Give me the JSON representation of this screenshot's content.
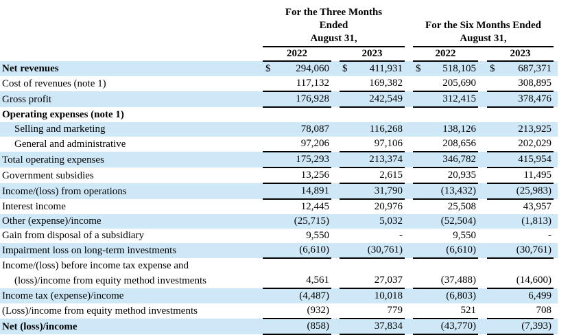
{
  "document": {
    "kind": "income-statement-table",
    "currency_symbol": "$"
  },
  "colors": {
    "row_highlight": "#cfe8f7",
    "rule": "#000000",
    "background": "#ffffff",
    "text": "#000000"
  },
  "header": {
    "groups": [
      {
        "title_lines": [
          "For the Three Months",
          "Ended",
          "August 31,"
        ],
        "years": [
          "2022",
          "2023"
        ]
      },
      {
        "title_lines": [
          "For the Six Months Ended",
          "August 31,"
        ],
        "years": [
          "2022",
          "2023"
        ]
      }
    ]
  },
  "rows": [
    {
      "label": "Net revenues",
      "bold": true,
      "indent": false,
      "shaded": true,
      "dollar": true,
      "underline": false,
      "values": [
        "294,060",
        "411,931",
        "518,105",
        "687,371"
      ]
    },
    {
      "label": "Cost of revenues (note 1)",
      "bold": false,
      "indent": false,
      "shaded": false,
      "dollar": false,
      "underline": true,
      "values": [
        "117,132",
        "169,382",
        "205,690",
        "308,895"
      ]
    },
    {
      "label": "Gross profit",
      "bold": false,
      "indent": false,
      "shaded": true,
      "dollar": false,
      "underline": true,
      "values": [
        "176,928",
        "242,549",
        "312,415",
        "378,476"
      ]
    },
    {
      "label": "Operating expenses (note 1)",
      "bold": true,
      "indent": false,
      "shaded": false,
      "dollar": false,
      "underline": false,
      "values": null
    },
    {
      "label": "Selling and marketing",
      "bold": false,
      "indent": true,
      "shaded": true,
      "dollar": false,
      "underline": false,
      "values": [
        "78,087",
        "116,268",
        "138,126",
        "213,925"
      ]
    },
    {
      "label": "General and administrative",
      "bold": false,
      "indent": true,
      "shaded": false,
      "dollar": false,
      "underline": true,
      "values": [
        "97,206",
        "97,106",
        "208,656",
        "202,029"
      ]
    },
    {
      "label": "Total operating expenses",
      "bold": false,
      "indent": false,
      "shaded": true,
      "dollar": false,
      "underline": true,
      "values": [
        "175,293",
        "213,374",
        "346,782",
        "415,954"
      ]
    },
    {
      "label": "Government subsidies",
      "bold": false,
      "indent": false,
      "shaded": false,
      "dollar": false,
      "underline": true,
      "values": [
        "13,256",
        "2,615",
        "20,935",
        "11,495"
      ]
    },
    {
      "label": "Income/(loss) from operations",
      "bold": false,
      "indent": false,
      "shaded": true,
      "dollar": false,
      "underline": true,
      "values": [
        "14,891",
        "31,790",
        "(13,432)",
        "(25,983)"
      ]
    },
    {
      "label": "Interest income",
      "bold": false,
      "indent": false,
      "shaded": false,
      "dollar": false,
      "underline": false,
      "values": [
        "12,445",
        "20,976",
        "25,508",
        "43,957"
      ]
    },
    {
      "label": "Other (expense)/income",
      "bold": false,
      "indent": false,
      "shaded": true,
      "dollar": false,
      "underline": false,
      "values": [
        "(25,715)",
        "5,032",
        "(52,504)",
        "(1,813)"
      ]
    },
    {
      "label": "Gain from disposal of a subsidiary",
      "bold": false,
      "indent": false,
      "shaded": false,
      "dollar": false,
      "underline": false,
      "values": [
        "9,550",
        "-",
        "9,550",
        "-"
      ]
    },
    {
      "label": "Impairment loss on long-term investments",
      "bold": false,
      "indent": false,
      "shaded": true,
      "dollar": false,
      "underline": true,
      "values": [
        "(6,610)",
        "(30,761)",
        "(6,610)",
        "(30,761)"
      ]
    },
    {
      "label": "Income/(loss) before income tax expense and",
      "bold": false,
      "indent": false,
      "shaded": false,
      "dollar": false,
      "underline": false,
      "values": null
    },
    {
      "label": "(loss)/income from equity method investments",
      "bold": false,
      "indent": true,
      "shaded": false,
      "dollar": false,
      "underline": true,
      "values": [
        "4,561",
        "27,037",
        "(37,488)",
        "(14,600)"
      ]
    },
    {
      "label": "Income tax (expense)/income",
      "bold": false,
      "indent": false,
      "shaded": true,
      "dollar": false,
      "underline": false,
      "values": [
        "(4,487)",
        "10,018",
        "(6,803)",
        "6,499"
      ]
    },
    {
      "label": "(Loss)/income from equity method investments",
      "bold": false,
      "indent": false,
      "shaded": false,
      "dollar": false,
      "underline": true,
      "values": [
        "(932)",
        "779",
        "521",
        "708"
      ]
    },
    {
      "label": "Net (loss)/income",
      "bold": true,
      "indent": false,
      "shaded": true,
      "dollar": false,
      "underline": true,
      "values": [
        "(858)",
        "37,834",
        "(43,770)",
        "(7,393)"
      ]
    }
  ]
}
